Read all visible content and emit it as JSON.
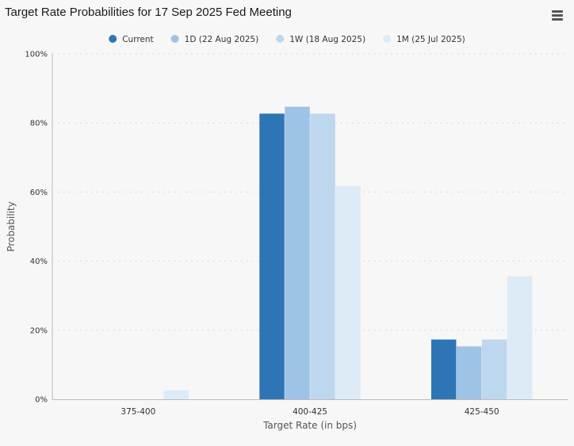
{
  "title": "Target Rate Probabilities for 17 Sep 2025 Fed Meeting",
  "menu_icon": "hamburger-menu-icon",
  "colors": {
    "background": "#f7f7f7",
    "grid": "#cfcfcf",
    "axis": "#bbbbbb",
    "text": "#333333"
  },
  "chart_data": {
    "type": "bar",
    "title": "Target Rate Probabilities for 17 Sep 2025 Fed Meeting",
    "xlabel": "Target Rate (in bps)",
    "ylabel": "Probability",
    "categories": [
      "375-400",
      "400-425",
      "425-450"
    ],
    "y_ticks": [
      "0%",
      "20%",
      "40%",
      "60%",
      "80%",
      "100%"
    ],
    "ylim": [
      0,
      100
    ],
    "grid": true,
    "legend_position": "top-center",
    "series": [
      {
        "name": "Current",
        "color": "#2e75b6",
        "values": [
          0,
          82.7,
          17.3
        ]
      },
      {
        "name": "1D (22 Aug 2025)",
        "color": "#9dc3e6",
        "values": [
          0,
          84.7,
          15.3
        ]
      },
      {
        "name": "1W (18 Aug 2025)",
        "color": "#bdd7ee",
        "values": [
          0,
          82.7,
          17.3
        ]
      },
      {
        "name": "1M (25 Jul 2025)",
        "color": "#ddebf7",
        "values": [
          2.6,
          61.8,
          35.6
        ]
      }
    ]
  }
}
